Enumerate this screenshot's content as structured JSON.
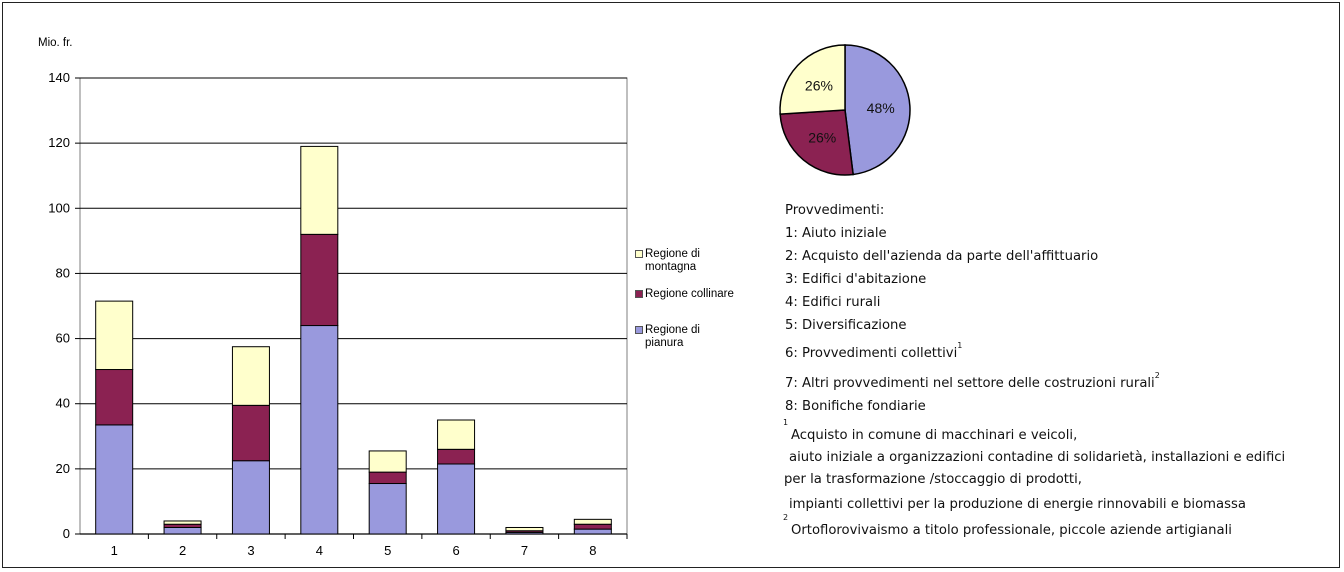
{
  "chart_data": [
    {
      "type": "bar",
      "stacked": true,
      "ylabel": "Mio. fr.",
      "ylim": [
        0,
        140
      ],
      "yticks": [
        0,
        20,
        40,
        60,
        80,
        100,
        120,
        140
      ],
      "categories": [
        "1",
        "2",
        "3",
        "4",
        "5",
        "6",
        "7",
        "8"
      ],
      "grid": true,
      "legend_position": "right",
      "series": [
        {
          "name": "Regione di pianura",
          "color": "#9999dd",
          "values": [
            33.5,
            2,
            22.5,
            64,
            15.5,
            21.5,
            0.5,
            1.5
          ]
        },
        {
          "name": "Regione collinare",
          "color": "#8b2252",
          "values": [
            17,
            1,
            17,
            28,
            3.5,
            4.5,
            0.5,
            1.5
          ]
        },
        {
          "name": "Regione di montagna",
          "color": "#ffffcc",
          "values": [
            21,
            1,
            18,
            27,
            6.5,
            9,
            1,
            1.5
          ]
        }
      ]
    },
    {
      "type": "pie",
      "slices": [
        {
          "label": "48%",
          "value": 48,
          "color": "#9999dd"
        },
        {
          "label": "26%",
          "value": 26,
          "color": "#8b2252"
        },
        {
          "label": "26%",
          "value": 26,
          "color": "#ffffcc"
        }
      ]
    }
  ],
  "legend": {
    "items": [
      {
        "text_lines": [
          "Regione di",
          "montagna"
        ],
        "color": "#ffffcc"
      },
      {
        "text_lines": [
          "Regione collinare"
        ],
        "color": "#8b2252"
      },
      {
        "text_lines": [
          "Regione di",
          "pianura"
        ],
        "color": "#9999dd"
      }
    ]
  },
  "provvedimenti": {
    "heading": "Provvedimenti:",
    "items": [
      "1: Aiuto iniziale",
      "2: Acquisto dell'azienda da parte dell'affittuario",
      "3: Edifici d'abitazione",
      "4: Edifici rurali",
      "5: Diversificazione",
      "6: Provvedimenti collettivi",
      "7: Altri provvedimenti nel settore delle costruzioni rurali",
      "8: Bonifiche fondiarie"
    ],
    "item6_sup": "1",
    "item7_sup": "2",
    "footnote1_mark": "1",
    "footnote1_lines": [
      "Acquisto in comune di macchinari e veicoli,",
      "aiuto iniziale a organizzazioni contadine di solidarietà, installazioni e edifici",
      "per la trasformazione /stoccaggio di prodotti,",
      "impianti collettivi per la produzione di energie rinnovabili e biomassa"
    ],
    "footnote2_mark": "2",
    "footnote2_line": "Ortoflorovivaismo a titolo professionale, piccole aziende artigianali"
  }
}
